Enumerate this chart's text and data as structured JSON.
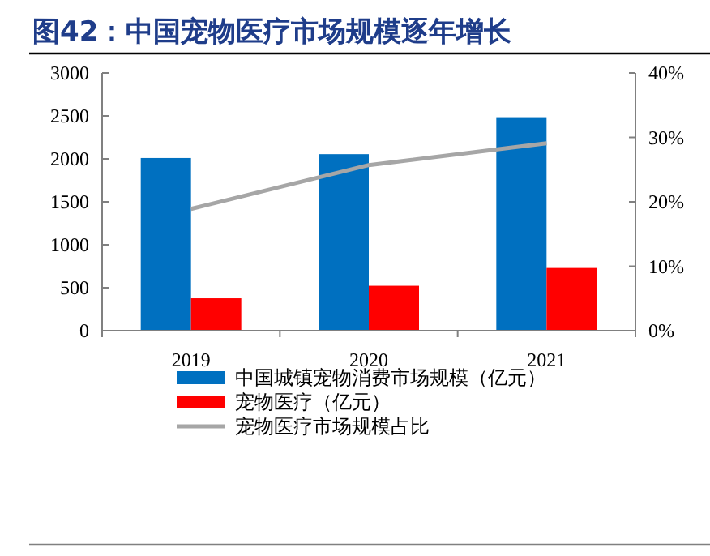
{
  "chart_data": {
    "type": "bar",
    "title": "图42：中国宠物医疗市场规模逐年增长",
    "categories": [
      "2019",
      "2020",
      "2021"
    ],
    "series": [
      {
        "name": "中国城镇宠物消费市场规模（亿元）",
        "color": "#0070c0",
        "values": [
          2010,
          2055,
          2485
        ]
      },
      {
        "name": "宠物医疗（亿元）",
        "color": "#ff0000",
        "values": [
          377,
          523,
          730
        ]
      },
      {
        "name": "宠物医疗市场规模占比",
        "type": "line",
        "axis": "y2",
        "color": "#a6a6a6",
        "values": [
          18.9,
          25.7,
          29.1
        ]
      }
    ],
    "ylim": [
      0,
      3000
    ],
    "yticks": [
      0,
      500,
      1000,
      1500,
      2000,
      2500,
      3000
    ],
    "y2lim": [
      0,
      40
    ],
    "y2ticks": [
      {
        "value": 0,
        "label": "0%"
      },
      {
        "value": 10,
        "label": "10%"
      },
      {
        "value": 20,
        "label": "20%"
      },
      {
        "value": 30,
        "label": "30%"
      },
      {
        "value": 40,
        "label": "40%"
      }
    ],
    "legend": "bottom",
    "grid": false
  }
}
